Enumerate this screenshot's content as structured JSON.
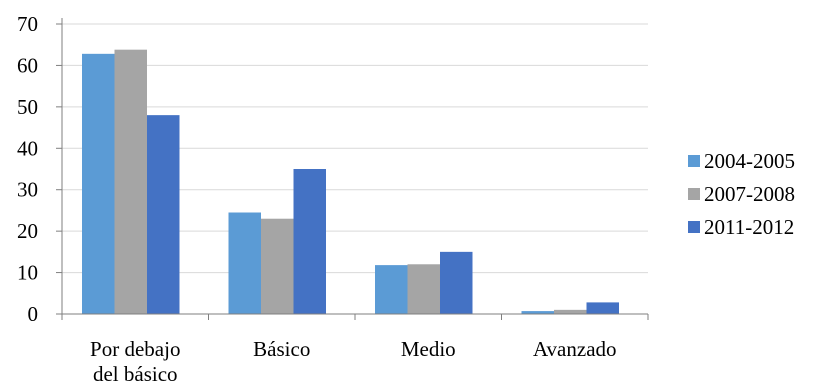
{
  "chart_data": {
    "type": "bar",
    "title": "",
    "xlabel": "",
    "ylabel": "",
    "categories": [
      [
        "Por debajo",
        "del básico"
      ],
      [
        "Básico"
      ],
      [
        "Medio"
      ],
      [
        "Avanzado"
      ]
    ],
    "series": [
      {
        "name": "2004-2005",
        "color": "#5b9bd5",
        "values": [
          62.8,
          24.5,
          11.8,
          0.7
        ]
      },
      {
        "name": "2007-2008",
        "color": "#a5a5a5",
        "values": [
          63.8,
          23.0,
          12.0,
          1.0
        ]
      },
      {
        "name": "2011-2012",
        "color": "#4472c4",
        "values": [
          48.0,
          35.0,
          15.0,
          2.8
        ]
      }
    ],
    "ylim": [
      0,
      70
    ],
    "yticks": [
      0,
      10,
      20,
      30,
      40,
      50,
      60,
      70
    ],
    "grid": true,
    "gridline_color": "#d9d9d9",
    "axis_color": "#7f7f7f",
    "legend_position": "right"
  }
}
